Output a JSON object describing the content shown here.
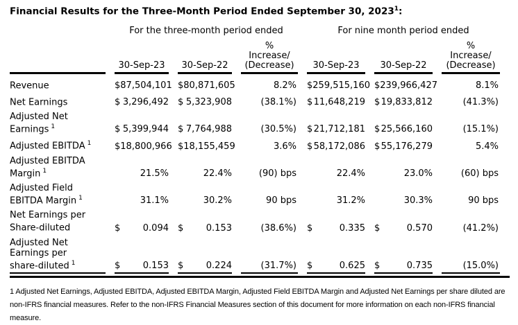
{
  "title": {
    "text": "Financial Results for the Three-Month Period Ended September 30, 2023",
    "sup": "1",
    "colon": ":"
  },
  "table": {
    "group_headers": [
      "For the three-month period ended",
      "For nine month period ended"
    ],
    "pct_header_lines": [
      "%",
      "Increase/",
      "(Decrease)"
    ],
    "date_columns": [
      "30-Sep-23",
      "30-Sep-22",
      "30-Sep-23",
      "30-Sep-22"
    ],
    "rows": [
      {
        "label": "Revenue",
        "sup": "",
        "cells": [
          {
            "cur": "$",
            "val": "87,504,101"
          },
          {
            "cur": "$",
            "val": "80,871,605"
          },
          {
            "cur": "",
            "val": "8.2%"
          },
          {
            "cur": "$",
            "val": "259,515,160"
          },
          {
            "cur": "$",
            "val": "239,966,427"
          },
          {
            "cur": "",
            "val": "8.1%"
          }
        ]
      },
      {
        "label": "Net Earnings",
        "sup": "",
        "cells": [
          {
            "cur": "$",
            "val": "3,296,492"
          },
          {
            "cur": "$",
            "val": "5,323,908"
          },
          {
            "cur": "",
            "val": "(38.1%)"
          },
          {
            "cur": "$",
            "val": "11,648,219"
          },
          {
            "cur": "$",
            "val": "19,833,812"
          },
          {
            "cur": "",
            "val": "(41.3%)"
          }
        ]
      },
      {
        "label": "Adjusted Net\nEarnings",
        "sup": "1",
        "cells": [
          {
            "cur": "$",
            "val": "5,399,944"
          },
          {
            "cur": "$",
            "val": "7,764,988"
          },
          {
            "cur": "",
            "val": "(30.5%)"
          },
          {
            "cur": "$",
            "val": "21,712,181"
          },
          {
            "cur": "$",
            "val": "25,566,160"
          },
          {
            "cur": "",
            "val": "(15.1%)"
          }
        ]
      },
      {
        "label": "Adjusted EBITDA",
        "sup": "1",
        "cells": [
          {
            "cur": "$",
            "val": "18,800,966"
          },
          {
            "cur": "$",
            "val": "18,155,459"
          },
          {
            "cur": "",
            "val": "3.6%"
          },
          {
            "cur": "$",
            "val": "58,172,086"
          },
          {
            "cur": "$",
            "val": "55,176,279"
          },
          {
            "cur": "",
            "val": "5.4%"
          }
        ]
      },
      {
        "label": "Adjusted EBITDA\nMargin",
        "sup": "1",
        "cells": [
          {
            "cur": "",
            "val": "21.5%"
          },
          {
            "cur": "",
            "val": "22.4%"
          },
          {
            "cur": "",
            "val": "(90) bps"
          },
          {
            "cur": "",
            "val": "22.4%"
          },
          {
            "cur": "",
            "val": "23.0%"
          },
          {
            "cur": "",
            "val": "(60) bps"
          }
        ]
      },
      {
        "label": "Adjusted Field\nEBITDA Margin",
        "sup": "1",
        "cells": [
          {
            "cur": "",
            "val": "31.1%"
          },
          {
            "cur": "",
            "val": "30.2%"
          },
          {
            "cur": "",
            "val": "90 bps"
          },
          {
            "cur": "",
            "val": "31.2%"
          },
          {
            "cur": "",
            "val": "30.3%"
          },
          {
            "cur": "",
            "val": "90 bps"
          }
        ]
      },
      {
        "label": "Net Earnings per\nShare-diluted",
        "sup": "",
        "cells": [
          {
            "cur": "$",
            "val": "0.094"
          },
          {
            "cur": "$",
            "val": "0.153"
          },
          {
            "cur": "",
            "val": "(38.6%)"
          },
          {
            "cur": "$",
            "val": "0.335"
          },
          {
            "cur": "$",
            "val": "0.570"
          },
          {
            "cur": "",
            "val": "(41.2%)"
          }
        ]
      },
      {
        "label": "Adjusted Net\nEarnings per\nshare-diluted",
        "sup": "1",
        "cells": [
          {
            "cur": "$",
            "val": "0.153"
          },
          {
            "cur": "$",
            "val": "0.224"
          },
          {
            "cur": "",
            "val": "(31.7%)"
          },
          {
            "cur": "$",
            "val": "0.625"
          },
          {
            "cur": "$",
            "val": "0.735"
          },
          {
            "cur": "",
            "val": "(15.0%)"
          }
        ]
      }
    ]
  },
  "footnote": "1 Adjusted Net Earnings, Adjusted EBITDA, Adjusted EBITDA Margin, Adjusted Field EBITDA Margin and Adjusted Net Earnings per share diluted are non-IFRS financial measures. Refer to the non-IFRS Financial Measures section of this document for more information on each non-IFRS financial measure."
}
